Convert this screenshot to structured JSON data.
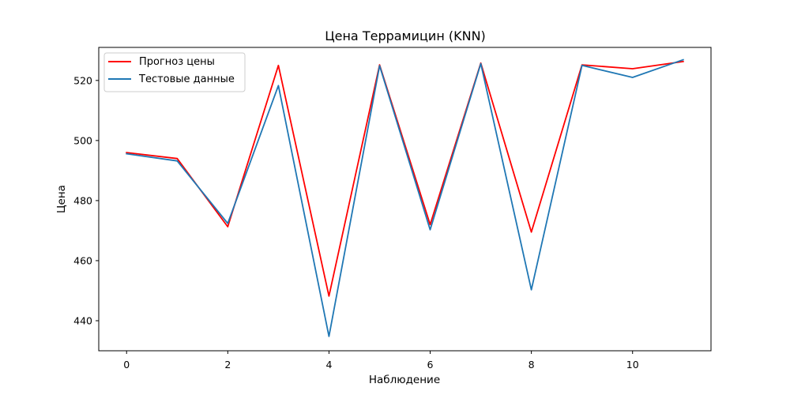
{
  "chart_data": {
    "type": "line",
    "title": "Цена Террамицин (KNN)",
    "xlabel": "Наблюдение",
    "ylabel": "Цена",
    "x": [
      0,
      1,
      2,
      3,
      4,
      5,
      6,
      7,
      8,
      9,
      10,
      11
    ],
    "xlim": [
      -0.55,
      11.55
    ],
    "ylim": [
      430,
      531
    ],
    "xticks": [
      0,
      2,
      4,
      6,
      8,
      10
    ],
    "yticks": [
      440,
      460,
      480,
      500,
      520
    ],
    "grid": false,
    "legend_position": "upper-left",
    "series": [
      {
        "name": "Прогноз цены",
        "color": "#ff0000",
        "values": [
          496.0,
          494.0,
          471.3,
          525.0,
          448.2,
          525.2,
          472.0,
          525.8,
          469.5,
          525.2,
          523.9,
          526.3
        ]
      },
      {
        "name": "Тестовые данные",
        "color": "#1f77b4",
        "values": [
          495.6,
          493.2,
          472.4,
          518.3,
          434.8,
          524.9,
          470.3,
          525.6,
          450.3,
          525.0,
          521.0,
          526.9
        ]
      }
    ]
  }
}
